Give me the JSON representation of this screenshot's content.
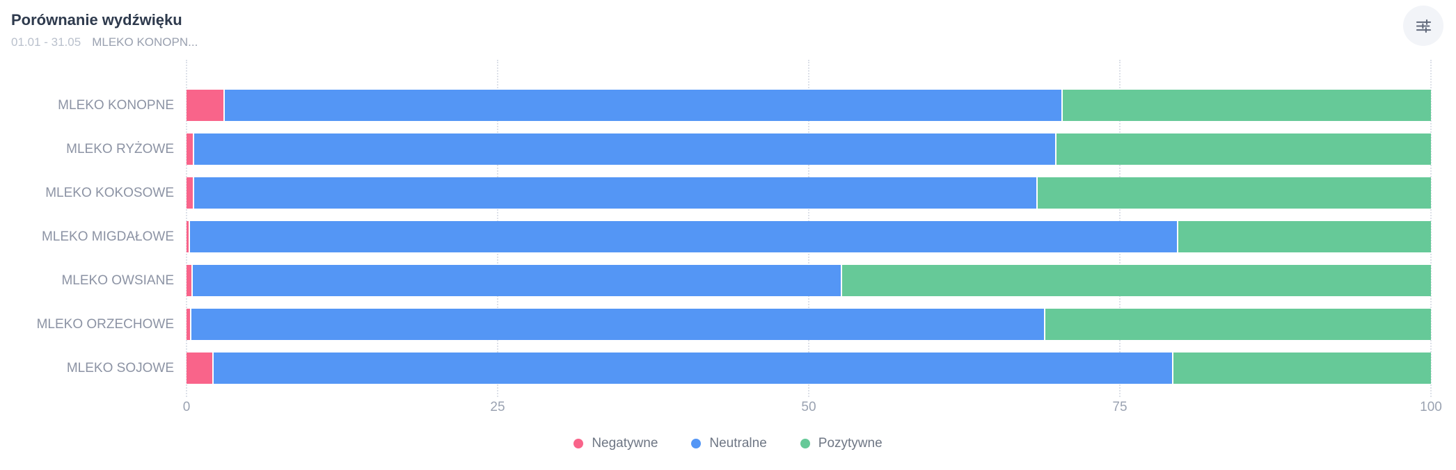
{
  "header": {
    "title": "Porównanie wydźwięku",
    "date_range": "01.01 - 31.05",
    "filter_label": "MLEKO KONOPN...",
    "settings_icon": "sliders-icon"
  },
  "colors": {
    "negative": "#F9648A",
    "neutral": "#5496F5",
    "positive": "#66C998",
    "grid": "#DCE0E8",
    "button_bg": "#F2F4F8"
  },
  "chart_data": {
    "type": "bar",
    "orientation": "horizontal",
    "stacked": true,
    "unit": "percent",
    "title": "Porównanie wydźwięku",
    "categories": [
      "MLEKO KONOPNE",
      "MLEKO RYŻOWE",
      "MLEKO KOKOSOWE",
      "MLEKO MIGDAŁOWE",
      "MLEKO OWSIANE",
      "MLEKO ORZECHOWE",
      "MLEKO SOJOWE"
    ],
    "series": [
      {
        "key": "negative",
        "name": "Negatywne",
        "color": "#F9648A",
        "values": [
          3.1,
          0.6,
          0.6,
          0.3,
          0.5,
          0.4,
          2.2
        ]
      },
      {
        "key": "neutral",
        "name": "Neutralne",
        "color": "#5496F5",
        "values": [
          67.3,
          69.3,
          67.8,
          79.4,
          52.2,
          68.6,
          77.1
        ]
      },
      {
        "key": "positive",
        "name": "Pozytywne",
        "color": "#66C998",
        "values": [
          29.6,
          30.1,
          31.6,
          20.3,
          47.3,
          31.0,
          20.7
        ]
      }
    ],
    "xlim": [
      0,
      100
    ],
    "x_ticks": [
      0,
      25,
      50,
      75,
      100
    ],
    "x_tick_labels": [
      "0",
      "25",
      "50",
      "75",
      "100"
    ],
    "grid": "vertical-dotted",
    "legend_position": "bottom"
  }
}
